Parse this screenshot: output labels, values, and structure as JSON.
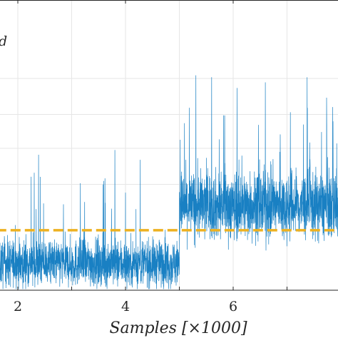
{
  "chart_data": {
    "type": "line",
    "xlabel": "Samples [×1000]",
    "xlim": [
      1.6,
      8.0
    ],
    "ylim": [
      0,
      1
    ],
    "x_ticks": [
      "2",
      "4",
      "6"
    ],
    "grid": true,
    "legend_fragment": "d",
    "series": [
      {
        "color": "#0072BD",
        "style": "noisy-signal",
        "segments": [
          {
            "x_start": 1.6,
            "x_end": 5.0,
            "mean": 0.115,
            "spread": 0.09,
            "max_spike": 0.62
          },
          {
            "x_start": 5.0,
            "x_end": 8.0,
            "mean": 0.36,
            "spread": 0.13,
            "max_spike": 0.92
          }
        ]
      },
      {
        "color": "#EDB120",
        "style": "dashed",
        "x": [
          1.6,
          8.0
        ],
        "y": [
          0.255,
          0.255
        ]
      }
    ]
  }
}
